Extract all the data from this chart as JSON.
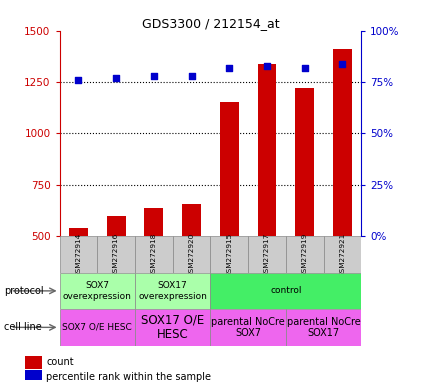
{
  "title": "GDS3300 / 212154_at",
  "samples": [
    "GSM272914",
    "GSM272916",
    "GSM272918",
    "GSM272920",
    "GSM272915",
    "GSM272917",
    "GSM272919",
    "GSM272921"
  ],
  "counts": [
    540,
    600,
    635,
    655,
    1155,
    1340,
    1220,
    1410
  ],
  "percentiles": [
    76,
    77,
    78,
    78,
    82,
    83,
    82,
    84
  ],
  "ylim_left": [
    500,
    1500
  ],
  "ylim_right": [
    0,
    100
  ],
  "yticks_left": [
    500,
    750,
    1000,
    1250,
    1500
  ],
  "yticks_right": [
    0,
    25,
    50,
    75,
    100
  ],
  "bar_color": "#cc0000",
  "dot_color": "#0000cc",
  "bar_width": 0.5,
  "protocol_groups": [
    {
      "label": "SOX7\noverexpression",
      "start": 0,
      "end": 2,
      "color": "#aaffaa"
    },
    {
      "label": "SOX17\noverexpression",
      "start": 2,
      "end": 4,
      "color": "#aaffaa"
    },
    {
      "label": "control",
      "start": 4,
      "end": 8,
      "color": "#44ee66"
    }
  ],
  "cellline_groups": [
    {
      "label": "SOX7 O/E HESC",
      "start": 0,
      "end": 2,
      "color": "#ee66ee",
      "fontsize": 6.5
    },
    {
      "label": "SOX17 O/E\nHESC",
      "start": 2,
      "end": 4,
      "color": "#ee66ee",
      "fontsize": 8.5
    },
    {
      "label": "parental NoCre\nSOX7",
      "start": 4,
      "end": 6,
      "color": "#ee66ee",
      "fontsize": 7
    },
    {
      "label": "parental NoCre\nSOX17",
      "start": 6,
      "end": 8,
      "color": "#ee66ee",
      "fontsize": 7
    }
  ],
  "left_axis_color": "#cc0000",
  "right_axis_color": "#0000cc",
  "dotted_line_y": [
    750,
    1000,
    1250
  ],
  "legend_items": [
    {
      "label": "count",
      "color": "#cc0000"
    },
    {
      "label": "percentile rank within the sample",
      "color": "#0000cc"
    }
  ],
  "sample_bg": "#cccccc",
  "fig_width": 4.25,
  "fig_height": 3.84,
  "fig_dpi": 100
}
